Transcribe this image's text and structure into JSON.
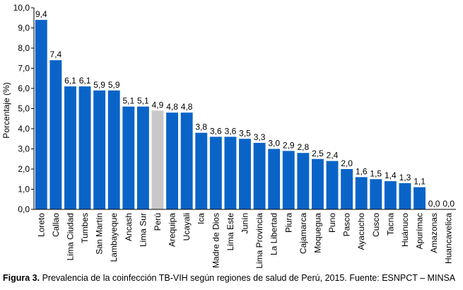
{
  "chart_data": {
    "type": "bar",
    "ylabel": "Porcentaje  (%)",
    "ylim": [
      0,
      10
    ],
    "yticks": [
      "0,0",
      "1,0",
      "2,0",
      "3,0",
      "4,0",
      "5,0",
      "6,0",
      "7,0",
      "8,0",
      "9,0",
      "10,0"
    ],
    "grid": false,
    "categories": [
      "Loreto",
      "Callao",
      "Lima Ciudad",
      "Tumbes",
      "San Martín",
      "Lambayeque",
      "Ancash",
      "Lima Sur",
      "Perú",
      "Arequipa",
      "Ucayali",
      "Ica",
      "Madre de Dios",
      "Lima Este",
      "Junín",
      "Lima Provincia",
      "La Libertad",
      "Piura",
      "Cajamarca",
      "Moquegua",
      "Puno",
      "Pasco",
      "Ayacucho",
      "Cusco",
      "Tacna",
      "Huánuco",
      "Apurímac",
      "Amazonas",
      "Huancavelica"
    ],
    "values": [
      9.4,
      7.4,
      6.1,
      6.1,
      5.9,
      5.9,
      5.1,
      5.1,
      4.9,
      4.8,
      4.8,
      3.8,
      3.6,
      3.6,
      3.5,
      3.3,
      3.0,
      2.9,
      2.8,
      2.5,
      2.4,
      2.0,
      1.6,
      1.5,
      1.4,
      1.3,
      1.1,
      0.0,
      0.0
    ],
    "value_labels": [
      "9,4",
      "7,4",
      "6,1",
      "6,1",
      "5,9",
      "5,9",
      "5,1",
      "5,1",
      "4,9",
      "4,8",
      "4,8",
      "3,8",
      "3,6",
      "3,6",
      "3,5",
      "3,3",
      "3,0",
      "2,9",
      "2,8",
      "2,5",
      "2,4",
      "2,0",
      "1,6",
      "1,5",
      "1,4",
      "1,3",
      "1,1",
      "0,0",
      "0,0"
    ],
    "highlight_category": "Perú",
    "colors": {
      "bar": "#0a64c8",
      "highlight": "#c8c8c8"
    }
  },
  "caption": {
    "prefix": "Figura 3.",
    "text": " Prevalencia de la coinfección TB-VIH según regiones de salud de Perú, 2015. Fuente: ESNPCT – MINSA"
  }
}
